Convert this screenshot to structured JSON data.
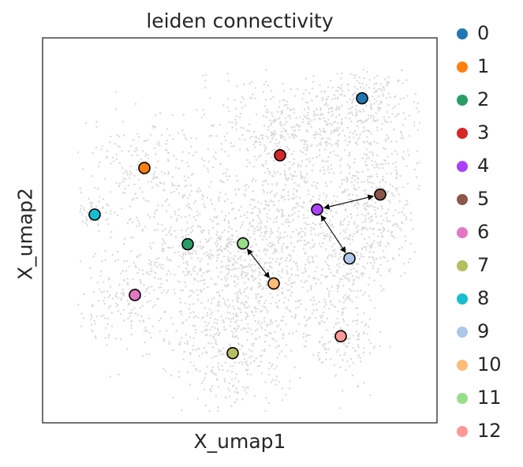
{
  "chart_data": {
    "type": "scatter",
    "title": "leiden connectivity",
    "xlabel": "X_umap1",
    "ylabel": "X_umap2",
    "xlim": [
      0,
      100
    ],
    "ylim": [
      0,
      100
    ],
    "grid": false,
    "legend_position": "right",
    "background_cells_color": "#d9d9d9",
    "clusters": [
      {
        "name": "0",
        "color": "#1f77b4",
        "x": 81.0,
        "y": 84.3
      },
      {
        "name": "1",
        "color": "#ff7f0e",
        "x": 25.8,
        "y": 66.2
      },
      {
        "name": "2",
        "color": "#279e68",
        "x": 36.8,
        "y": 46.4
      },
      {
        "name": "3",
        "color": "#d62728",
        "x": 60.2,
        "y": 69.5
      },
      {
        "name": "4",
        "color": "#aa40fc",
        "x": 69.6,
        "y": 55.4
      },
      {
        "name": "5",
        "color": "#8c564b",
        "x": 85.6,
        "y": 59.3
      },
      {
        "name": "6",
        "color": "#e377c2",
        "x": 23.4,
        "y": 33.2
      },
      {
        "name": "7",
        "color": "#b5bd61",
        "x": 48.2,
        "y": 18.1
      },
      {
        "name": "8",
        "color": "#17becf",
        "x": 13.2,
        "y": 54.1
      },
      {
        "name": "9",
        "color": "#aec7e8",
        "x": 77.8,
        "y": 42.7
      },
      {
        "name": "10",
        "color": "#ffbb78",
        "x": 58.6,
        "y": 36.2
      },
      {
        "name": "11",
        "color": "#98df8a",
        "x": 50.8,
        "y": 46.6
      },
      {
        "name": "12",
        "color": "#ff9896",
        "x": 75.6,
        "y": 22.5
      }
    ],
    "edges": [
      [
        "4",
        "5"
      ],
      [
        "4",
        "9"
      ],
      [
        "11",
        "10"
      ]
    ]
  }
}
